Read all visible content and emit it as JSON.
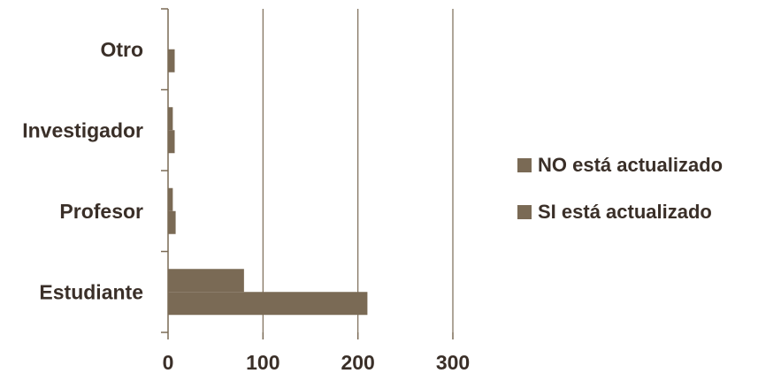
{
  "chart_data": {
    "type": "bar",
    "orientation": "horizontal",
    "categories": [
      "Estudiante",
      "Profesor",
      "Investigador",
      "Otro"
    ],
    "series": [
      {
        "name": "NO está actualizado",
        "values": [
          80,
          5,
          5,
          0
        ],
        "color": "#7a6a55"
      },
      {
        "name": "SI está actualizado",
        "values": [
          210,
          8,
          7,
          7
        ],
        "color": "#7a6a55"
      }
    ],
    "xticks": [
      "0",
      "100",
      "200",
      "300"
    ],
    "xlim": [
      0,
      300
    ],
    "grid": true,
    "legend_position": "right",
    "colors": {
      "axis": "#7a6a55",
      "grid": "#7a6a55",
      "text": "#3a2f28"
    }
  }
}
